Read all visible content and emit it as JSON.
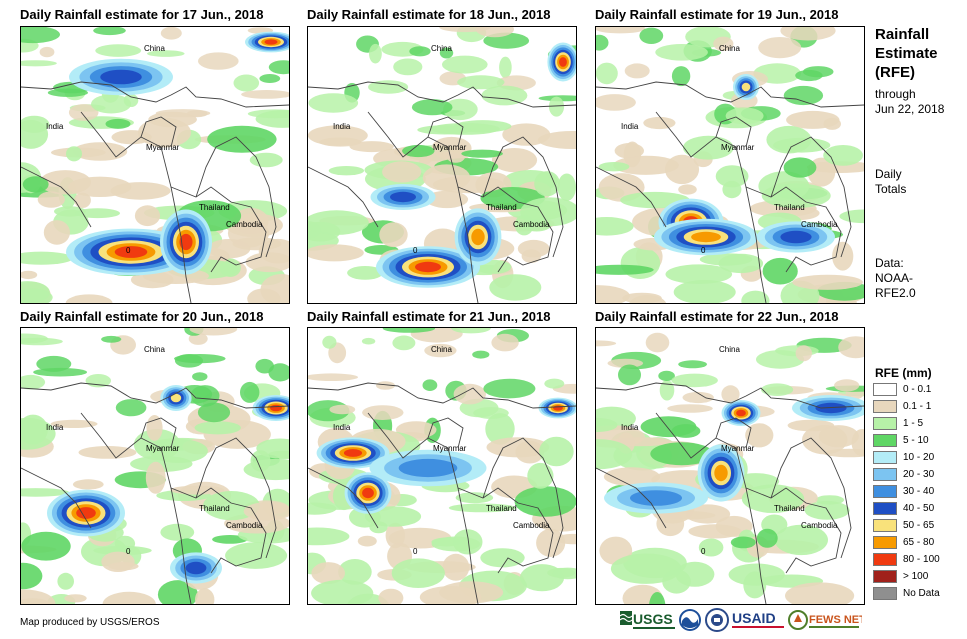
{
  "panels": [
    {
      "title": "Daily Rainfall estimate for 17 Jun., 2018"
    },
    {
      "title": "Daily Rainfall estimate for 18 Jun., 2018"
    },
    {
      "title": "Daily Rainfall estimate for 19 Jun., 2018"
    },
    {
      "title": "Daily Rainfall estimate for 20 Jun., 2018"
    },
    {
      "title": "Daily Rainfall estimate for 21 Jun., 2018"
    },
    {
      "title": "Daily Rainfall estimate for 22 Jun., 2018"
    }
  ],
  "map_labels": {
    "china": "China",
    "india": "India",
    "myanmar": "Myanmar",
    "thailand": "Thailand",
    "cambodia": "Cambodia",
    "zero": "0"
  },
  "side": {
    "heading_lines": [
      "Rainfall",
      "Estimate",
      "(RFE)"
    ],
    "through": "through",
    "date": "Jun 22, 2018",
    "totals_lines": [
      "Daily",
      "Totals"
    ],
    "data_lines": [
      "Data:",
      "NOAA-",
      "RFE2.0"
    ]
  },
  "legend": {
    "title": "RFE (mm)",
    "items": [
      {
        "label": "0 - 0.1",
        "color": "#ffffff"
      },
      {
        "label": "0.1 - 1",
        "color": "#e8d7bd"
      },
      {
        "label": "1 - 5",
        "color": "#b7f2a8"
      },
      {
        "label": "5 - 10",
        "color": "#5fd665"
      },
      {
        "label": "10 - 20",
        "color": "#b3ecf7"
      },
      {
        "label": "20 - 30",
        "color": "#7cc4f1"
      },
      {
        "label": "30 - 40",
        "color": "#3f8fe0"
      },
      {
        "label": "40 - 50",
        "color": "#1f4fc4"
      },
      {
        "label": "50 - 65",
        "color": "#f9e27b"
      },
      {
        "label": "65 - 80",
        "color": "#f79a00"
      },
      {
        "label": "80 - 100",
        "color": "#f03a10"
      },
      {
        "label": "> 100",
        "color": "#a0211b"
      },
      {
        "label": "No Data",
        "color": "#8f8f8f"
      }
    ]
  },
  "footer": "Map produced by USGS/EROS",
  "logos": {
    "usgs": "USGS",
    "usaid": "USAID",
    "fewsnet": "FEWS NET"
  }
}
